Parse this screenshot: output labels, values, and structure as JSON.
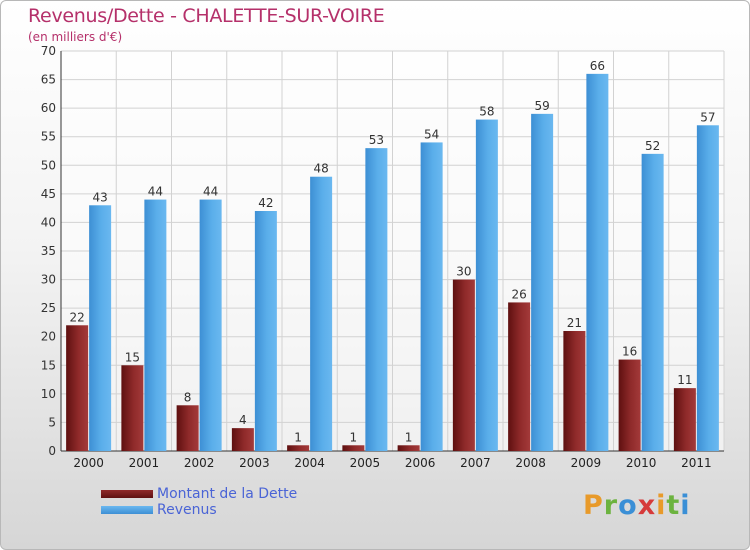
{
  "chart_data": {
    "type": "bar",
    "title": "Revenus/Dette - CHALETTE-SUR-VOIRE",
    "subtitle": "(en milliers d'€)",
    "categories": [
      "2000",
      "2001",
      "2002",
      "2003",
      "2004",
      "2005",
      "2006",
      "2007",
      "2008",
      "2009",
      "2010",
      "2011"
    ],
    "series": [
      {
        "name": "Montant de la Dette",
        "values": [
          22,
          15,
          8,
          4,
          1,
          1,
          1,
          30,
          26,
          21,
          16,
          11
        ],
        "color": "#7a1c1c"
      },
      {
        "name": "Revenus",
        "values": [
          43,
          44,
          44,
          42,
          48,
          53,
          54,
          58,
          59,
          66,
          52,
          57
        ],
        "color": "#4ea3e6"
      }
    ],
    "ylim": [
      0,
      70
    ],
    "yticks": [
      0,
      5,
      10,
      15,
      20,
      25,
      30,
      35,
      40,
      45,
      50,
      55,
      60,
      65,
      70
    ],
    "grid": true,
    "legend": "bottom-left"
  },
  "watermark": {
    "text": "Proxiti",
    "letter_colors": [
      "#e89a2a",
      "#6cb33f",
      "#3a8fd6",
      "#d63a3a",
      "#e89a2a",
      "#6cb33f",
      "#3a8fd6"
    ]
  }
}
